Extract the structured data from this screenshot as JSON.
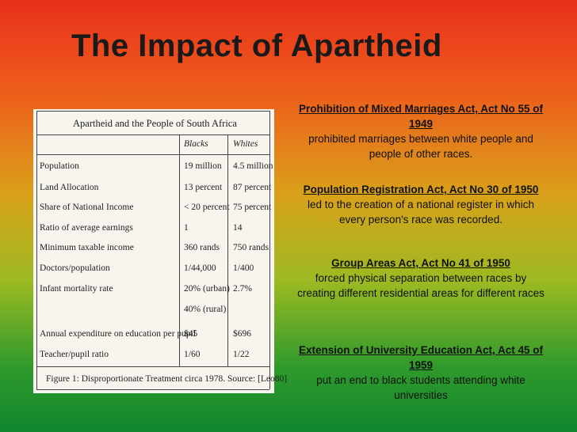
{
  "header": {
    "title": "The Impact of Apartheid"
  },
  "table": {
    "title": "Apartheid and the People of South Africa",
    "columns": [
      "Blacks",
      "Whites"
    ],
    "rows": [
      {
        "label": "Population",
        "blacks": [
          "19 million"
        ],
        "whites": "4.5 million"
      },
      {
        "label": "Land Allocation",
        "blacks": [
          "13 percent"
        ],
        "whites": "87 percent"
      },
      {
        "label": "Share of National Income",
        "blacks": [
          "< 20 percent"
        ],
        "whites": "75 percent"
      },
      {
        "label": "Ratio of average earnings",
        "blacks": [
          "1"
        ],
        "whites": "14"
      },
      {
        "label": "Minimum taxable income",
        "blacks": [
          "360 rands"
        ],
        "whites": "750 rands"
      },
      {
        "label": "Doctors/population",
        "blacks": [
          "1/44,000"
        ],
        "whites": "1/400"
      },
      {
        "label": "Infant mortality rate",
        "blacks": [
          "20% (urban)",
          "40% (rural)"
        ],
        "whites": "2.7%"
      },
      {
        "label": "Annual expenditure on education per pupil",
        "blacks": [
          "$45"
        ],
        "whites": "$696"
      },
      {
        "label": "Teacher/pupil ratio",
        "blacks": [
          "1/60"
        ],
        "whites": "1/22"
      }
    ],
    "caption": "Figure 1: Disproportionate Treatment circa 1978. Source: [Leo80]"
  },
  "acts": [
    {
      "heading": "Prohibition of Mixed Marriages Act, Act No 55 of 1949",
      "text": "prohibited marriages between white people and people of other races."
    },
    {
      "heading": "Population Registration Act, Act No 30 of 1950",
      "text": "led to the creation of a national register in which every person's race was recorded."
    },
    {
      "heading": "Group Areas Act, Act No 41 of 1950",
      "text": "forced physical separation between races by creating different residential areas for different races"
    },
    {
      "heading": "Extension of University Education Act, Act 45 of 1959",
      "text": "put an end to black students attending white universities"
    }
  ]
}
